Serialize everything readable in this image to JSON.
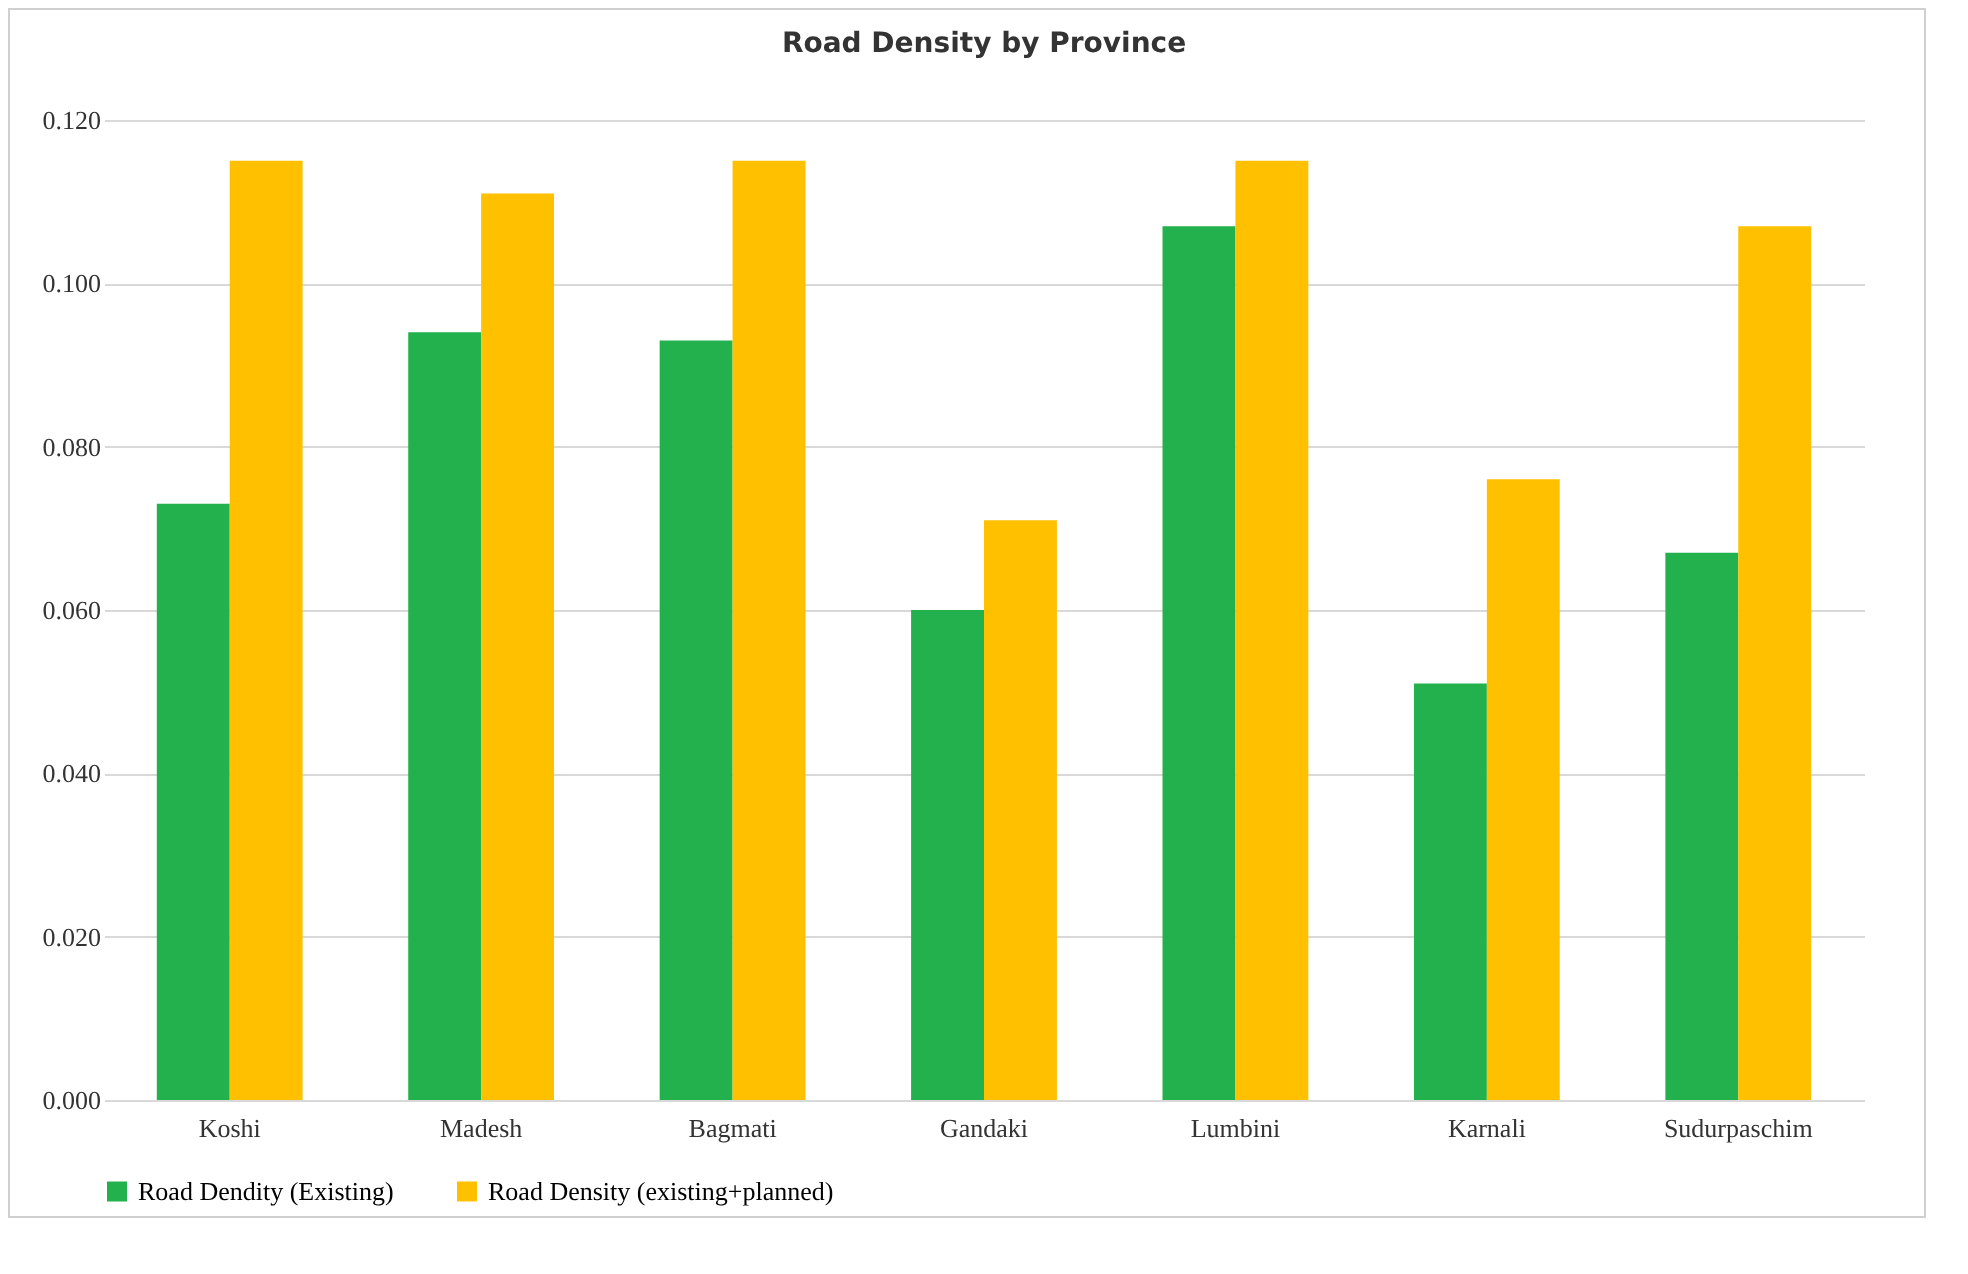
{
  "chart_data": {
    "type": "bar",
    "title": "Road Density by Province",
    "categories": [
      "Koshi",
      "Madesh",
      "Bagmati",
      "Gandaki",
      "Lumbini",
      "Karnali",
      "Sudurpaschim"
    ],
    "series": [
      {
        "name": "Road Dendity (Existing)",
        "color": "#22b14c",
        "values": [
          0.073,
          0.094,
          0.093,
          0.06,
          0.107,
          0.051,
          0.067
        ]
      },
      {
        "name": "Road Density (existing+planned)",
        "color": "#ffc000",
        "values": [
          0.115,
          0.111,
          0.115,
          0.071,
          0.115,
          0.076,
          0.107
        ]
      }
    ],
    "ylim": [
      0,
      0.12
    ],
    "yticks": [
      {
        "value": 0,
        "label": "0.000"
      },
      {
        "value": 0.02,
        "label": "0.020"
      },
      {
        "value": 0.04,
        "label": "0.040"
      },
      {
        "value": 0.06,
        "label": "0.060"
      },
      {
        "value": 0.08,
        "label": "0.080"
      },
      {
        "value": 0.1,
        "label": "0.100"
      },
      {
        "value": 0.12,
        "label": "0.120"
      }
    ],
    "grid": "y",
    "legend": "bottom"
  }
}
